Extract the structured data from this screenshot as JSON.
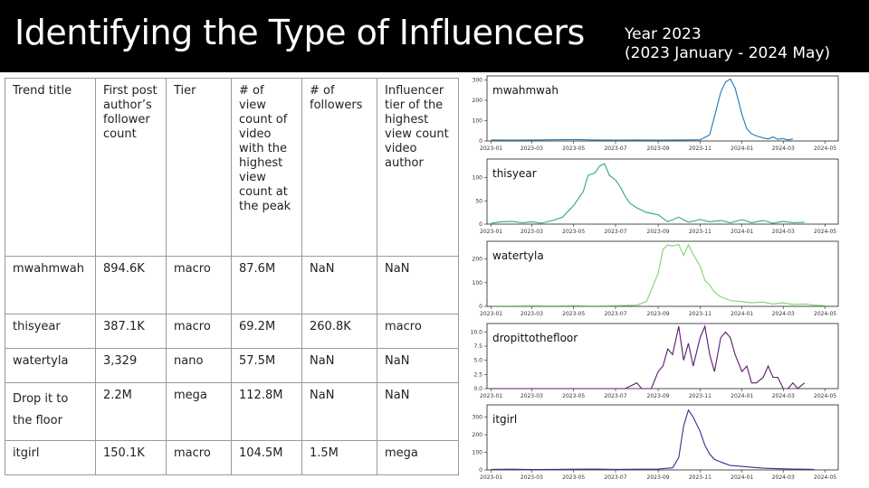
{
  "header": {
    "title": "Identifying the Type of Influencers",
    "year_line1": "Year 2023",
    "year_line2": "(2023 January - 2024 May)"
  },
  "table": {
    "headers": [
      "Trend title",
      "First post author’s follower count",
      "Tier",
      "# of view count of video with the highest view count at the peak",
      "# of followers",
      "Influencer tier of the highest view count video author"
    ],
    "rows": [
      [
        "mwahmwah",
        "894.6K",
        "macro",
        "87.6M",
        "NaN",
        "NaN"
      ],
      [
        "thisyear",
        "387.1K",
        "macro",
        "69.2M",
        "260.8K",
        "macro"
      ],
      [
        "watertyla",
        "3,329",
        "nano",
        "57.5M",
        "NaN",
        "NaN"
      ],
      [
        "Drop it to the floor",
        "2.2M",
        "mega",
        "112.8M",
        "NaN",
        "NaN"
      ],
      [
        "itgirl",
        "150.1K",
        "macro",
        "104.5M",
        "1.5M",
        "mega"
      ]
    ]
  },
  "chart_data": [
    {
      "type": "line",
      "color": "#1f77b4",
      "series": [
        {
          "name": "mwahmwah"
        }
      ],
      "x_ticks": [
        "2023-01",
        "2023-03",
        "2023-05",
        "2023-07",
        "2023-09",
        "2023-11",
        "2024-01",
        "2024-03",
        "2024-05"
      ],
      "yticks": [
        0,
        100,
        200,
        300
      ],
      "ylim": [
        0,
        320
      ],
      "points": [
        [
          "2023-01-01",
          5
        ],
        [
          "2023-02-01",
          4
        ],
        [
          "2023-03-01",
          5
        ],
        [
          "2023-04-01",
          6
        ],
        [
          "2023-05-01",
          7
        ],
        [
          "2023-06-01",
          5
        ],
        [
          "2023-07-01",
          4
        ],
        [
          "2023-08-01",
          5
        ],
        [
          "2023-09-01",
          4
        ],
        [
          "2023-10-01",
          5
        ],
        [
          "2023-11-01",
          6
        ],
        [
          "2023-11-15",
          30
        ],
        [
          "2023-11-22",
          120
        ],
        [
          "2023-12-01",
          240
        ],
        [
          "2023-12-08",
          290
        ],
        [
          "2023-12-15",
          305
        ],
        [
          "2023-12-22",
          260
        ],
        [
          "2024-01-01",
          130
        ],
        [
          "2024-01-08",
          60
        ],
        [
          "2024-01-15",
          35
        ],
        [
          "2024-01-22",
          25
        ],
        [
          "2024-02-01",
          15
        ],
        [
          "2024-02-08",
          10
        ],
        [
          "2024-02-15",
          20
        ],
        [
          "2024-02-22",
          8
        ],
        [
          "2024-03-01",
          12
        ],
        [
          "2024-03-08",
          5
        ],
        [
          "2024-03-15",
          10
        ]
      ]
    },
    {
      "type": "line",
      "color": "#2ca58d",
      "series": [
        {
          "name": "thisyear"
        }
      ],
      "x_ticks": [
        "2023-01",
        "2023-03",
        "2023-05",
        "2023-07",
        "2023-09",
        "2023-11",
        "2024-01",
        "2024-03",
        "2024-05"
      ],
      "yticks": [
        0,
        50,
        100
      ],
      "ylim": [
        0,
        140
      ],
      "points": [
        [
          "2023-01-01",
          2
        ],
        [
          "2023-01-15",
          5
        ],
        [
          "2023-02-01",
          6
        ],
        [
          "2023-02-15",
          3
        ],
        [
          "2023-03-01",
          5
        ],
        [
          "2023-03-15",
          2
        ],
        [
          "2023-04-01",
          8
        ],
        [
          "2023-04-15",
          15
        ],
        [
          "2023-05-01",
          40
        ],
        [
          "2023-05-08",
          55
        ],
        [
          "2023-05-15",
          70
        ],
        [
          "2023-05-22",
          105
        ],
        [
          "2023-06-01",
          110
        ],
        [
          "2023-06-08",
          125
        ],
        [
          "2023-06-15",
          130
        ],
        [
          "2023-06-22",
          105
        ],
        [
          "2023-07-01",
          95
        ],
        [
          "2023-07-08",
          80
        ],
        [
          "2023-07-15",
          60
        ],
        [
          "2023-07-22",
          45
        ],
        [
          "2023-08-01",
          35
        ],
        [
          "2023-08-15",
          25
        ],
        [
          "2023-09-01",
          20
        ],
        [
          "2023-09-15",
          5
        ],
        [
          "2023-10-01",
          15
        ],
        [
          "2023-10-15",
          4
        ],
        [
          "2023-11-01",
          10
        ],
        [
          "2023-11-15",
          5
        ],
        [
          "2023-12-01",
          8
        ],
        [
          "2023-12-15",
          3
        ],
        [
          "2024-01-01",
          10
        ],
        [
          "2024-01-15",
          3
        ],
        [
          "2024-02-01",
          8
        ],
        [
          "2024-02-15",
          2
        ],
        [
          "2024-03-01",
          6
        ],
        [
          "2024-03-15",
          3
        ],
        [
          "2024-04-01",
          4
        ]
      ]
    },
    {
      "type": "line",
      "color": "#7ed56f",
      "series": [
        {
          "name": "watertyla"
        }
      ],
      "x_ticks": [
        "2023-01",
        "2023-03",
        "2023-05",
        "2023-07",
        "2023-09",
        "2023-11",
        "2024-01",
        "2024-03",
        "2024-05"
      ],
      "yticks": [
        0,
        100,
        200
      ],
      "ylim": [
        0,
        275
      ],
      "points": [
        [
          "2023-01-01",
          2
        ],
        [
          "2023-02-01",
          2
        ],
        [
          "2023-03-01",
          3
        ],
        [
          "2023-04-01",
          2
        ],
        [
          "2023-05-01",
          3
        ],
        [
          "2023-06-01",
          2
        ],
        [
          "2023-07-01",
          3
        ],
        [
          "2023-08-01",
          5
        ],
        [
          "2023-08-15",
          20
        ],
        [
          "2023-09-01",
          140
        ],
        [
          "2023-09-08",
          240
        ],
        [
          "2023-09-15",
          260
        ],
        [
          "2023-09-22",
          255
        ],
        [
          "2023-10-01",
          262
        ],
        [
          "2023-10-08",
          215
        ],
        [
          "2023-10-15",
          260
        ],
        [
          "2023-10-22",
          220
        ],
        [
          "2023-11-01",
          170
        ],
        [
          "2023-11-08",
          110
        ],
        [
          "2023-11-15",
          90
        ],
        [
          "2023-11-22",
          60
        ],
        [
          "2023-12-01",
          40
        ],
        [
          "2023-12-15",
          25
        ],
        [
          "2024-01-01",
          20
        ],
        [
          "2024-01-15",
          15
        ],
        [
          "2024-02-01",
          18
        ],
        [
          "2024-02-15",
          10
        ],
        [
          "2024-03-01",
          15
        ],
        [
          "2024-03-15",
          8
        ],
        [
          "2024-04-01",
          10
        ],
        [
          "2024-04-15",
          5
        ],
        [
          "2024-05-01",
          3
        ]
      ]
    },
    {
      "type": "line",
      "color": "#5b1a6e",
      "series": [
        {
          "name": "dropittothefloor"
        }
      ],
      "x_ticks": [
        "2023-01",
        "2023-03",
        "2023-05",
        "2023-07",
        "2023-09",
        "2023-11",
        "2024-01",
        "2024-03",
        "2024-05"
      ],
      "yticks": [
        0.0,
        2.5,
        5.0,
        7.5,
        10.0
      ],
      "ylim": [
        0,
        11.5
      ],
      "points": [
        [
          "2023-01-01",
          0
        ],
        [
          "2023-07-15",
          0
        ],
        [
          "2023-08-01",
          1
        ],
        [
          "2023-08-08",
          0
        ],
        [
          "2023-08-22",
          0
        ],
        [
          "2023-09-01",
          3
        ],
        [
          "2023-09-08",
          4
        ],
        [
          "2023-09-15",
          7
        ],
        [
          "2023-09-22",
          6
        ],
        [
          "2023-10-01",
          11
        ],
        [
          "2023-10-08",
          5
        ],
        [
          "2023-10-15",
          8
        ],
        [
          "2023-10-22",
          4
        ],
        [
          "2023-11-01",
          9
        ],
        [
          "2023-11-08",
          11
        ],
        [
          "2023-11-15",
          6
        ],
        [
          "2023-11-22",
          3
        ],
        [
          "2023-12-01",
          9
        ],
        [
          "2023-12-08",
          10
        ],
        [
          "2023-12-15",
          9
        ],
        [
          "2023-12-22",
          6
        ],
        [
          "2024-01-01",
          3
        ],
        [
          "2024-01-08",
          4
        ],
        [
          "2024-01-15",
          1
        ],
        [
          "2024-01-22",
          1
        ],
        [
          "2024-02-01",
          2
        ],
        [
          "2024-02-08",
          4
        ],
        [
          "2024-02-15",
          2
        ],
        [
          "2024-02-22",
          2
        ],
        [
          "2024-03-01",
          0
        ],
        [
          "2024-03-08",
          0
        ],
        [
          "2024-03-15",
          1
        ],
        [
          "2024-03-22",
          0
        ],
        [
          "2024-04-01",
          1
        ]
      ]
    },
    {
      "type": "line",
      "color": "#3b2f8f",
      "series": [
        {
          "name": "itgirl"
        }
      ],
      "x_ticks": [
        "2023-01",
        "2023-03",
        "2023-05",
        "2023-07",
        "2023-09",
        "2023-11",
        "2024-01",
        "2024-03",
        "2024-05"
      ],
      "yticks": [
        0,
        100,
        200,
        300
      ],
      "ylim": [
        0,
        370
      ],
      "points": [
        [
          "2023-01-01",
          3
        ],
        [
          "2023-02-01",
          4
        ],
        [
          "2023-03-01",
          2
        ],
        [
          "2023-04-01",
          3
        ],
        [
          "2023-05-01",
          4
        ],
        [
          "2023-06-01",
          5
        ],
        [
          "2023-07-01",
          3
        ],
        [
          "2023-08-01",
          4
        ],
        [
          "2023-09-01",
          5
        ],
        [
          "2023-09-22",
          12
        ],
        [
          "2023-10-01",
          70
        ],
        [
          "2023-10-08",
          250
        ],
        [
          "2023-10-15",
          340
        ],
        [
          "2023-10-22",
          300
        ],
        [
          "2023-11-01",
          220
        ],
        [
          "2023-11-08",
          140
        ],
        [
          "2023-11-15",
          90
        ],
        [
          "2023-11-22",
          60
        ],
        [
          "2023-12-01",
          45
        ],
        [
          "2023-12-08",
          35
        ],
        [
          "2023-12-15",
          25
        ],
        [
          "2024-01-01",
          20
        ],
        [
          "2024-01-15",
          15
        ],
        [
          "2024-02-01",
          10
        ],
        [
          "2024-02-15",
          8
        ],
        [
          "2024-03-01",
          6
        ],
        [
          "2024-03-15",
          5
        ],
        [
          "2024-04-01",
          4
        ],
        [
          "2024-04-15",
          3
        ]
      ]
    }
  ]
}
